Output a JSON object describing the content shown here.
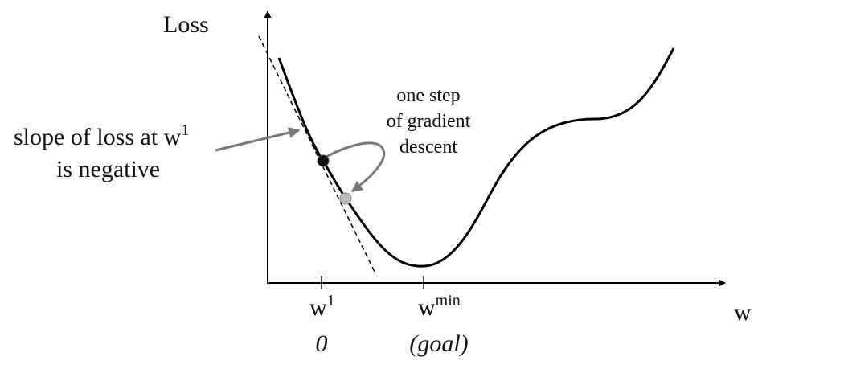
{
  "axes": {
    "y_label": "Loss",
    "x_label": "w"
  },
  "annotations": {
    "slope_line1_main": "slope of loss at w",
    "slope_line1_sup": "1",
    "slope_line2": "is negative",
    "step_line1": "one step",
    "step_line2": "of gradient",
    "step_line3": "descent"
  },
  "ticks": {
    "w1_base": "w",
    "w1_sup": "1",
    "w1_value": "0",
    "wmin_base": "w",
    "wmin_sup": "min",
    "wmin_value": "(goal)"
  },
  "colors": {
    "curve": "#000000",
    "tangent": "#000000",
    "pointer_arrow": "#777777",
    "point_start": "#111111",
    "point_next": "#bdbdbd"
  }
}
